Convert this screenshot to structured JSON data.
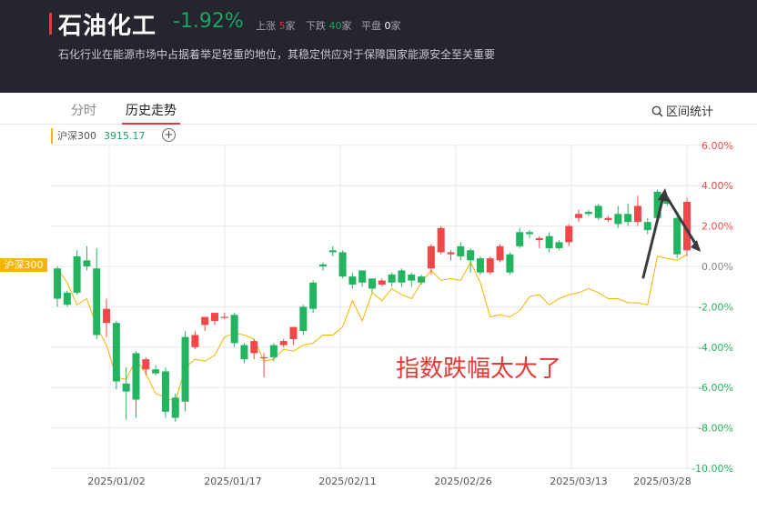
{
  "header": {
    "title": "石油化工",
    "change_pct": "-1.92%",
    "up_label": "上涨",
    "up_count": "5",
    "up_unit": "家",
    "down_label": "下跌",
    "down_count": "40",
    "down_unit": "家",
    "flat_label": "平盘",
    "flat_count": "0",
    "flat_unit": "家",
    "description": "石化行业在能源市场中占据着举足轻重的地位，其稳定供应对于保障国家能源安全至关重要"
  },
  "tabs": [
    {
      "label": "分时",
      "active": false
    },
    {
      "label": "历史走势",
      "active": true
    }
  ],
  "range_button": {
    "label": "区间统计",
    "icon": "search-icon"
  },
  "legend": {
    "name": "沪深300",
    "value": "3915.17",
    "add_icon": "plus-circle-icon"
  },
  "colors": {
    "up": "#f04848",
    "down": "#22b45f",
    "benchmark": "#f5b400",
    "accent": "#e03b3b"
  },
  "chart_data": {
    "type": "candlestick",
    "y_ticks": [
      "6.00%",
      "4.00%",
      "2.00%",
      "0.00%",
      "-2.00%",
      "-4.00%",
      "-6.00%",
      "-8.00%",
      "-10.00%"
    ],
    "y_tick_values": [
      6,
      4,
      2,
      0,
      -2,
      -4,
      -6,
      -8,
      -10
    ],
    "ylim": [
      -10,
      6
    ],
    "x_tick_labels": [
      "2025/01/02",
      "2025/01/17",
      "2025/02/11",
      "2025/02/26",
      "2025/03/13",
      "2025/03/28"
    ],
    "benchmark_tag": "沪深300",
    "annotation": "指数跌幅太大了",
    "candles": [
      [
        -0.1,
        -1.6,
        0.0,
        -2.0
      ],
      [
        -1.3,
        -1.9,
        -1.2,
        -2.0
      ],
      [
        0.5,
        -1.3,
        0.8,
        -1.4
      ],
      [
        0.3,
        0.0,
        1.0,
        -0.2
      ],
      [
        -0.1,
        -3.4,
        0.9,
        -3.6
      ],
      [
        -2.8,
        -2.1,
        -1.6,
        -3.5
      ],
      [
        -2.8,
        -5.7,
        -2.7,
        -6.1
      ],
      [
        -5.8,
        -6.2,
        -5.0,
        -7.6
      ],
      [
        -4.3,
        -6.6,
        -4.2,
        -7.5
      ],
      [
        -5.1,
        -4.6,
        -4.5,
        -5.4
      ],
      [
        -5.1,
        -5.3,
        -4.9,
        -5.4
      ],
      [
        -5.2,
        -7.2,
        -5.0,
        -7.5
      ],
      [
        -6.5,
        -7.5,
        -6.3,
        -7.7
      ],
      [
        -3.5,
        -6.7,
        -3.2,
        -7.2
      ],
      [
        -4.0,
        -3.4,
        -3.2,
        -4.1
      ],
      [
        -2.9,
        -2.5,
        -2.6,
        -3.2
      ],
      [
        -2.7,
        -2.3,
        -2.3,
        -2.9
      ],
      [
        -2.5,
        -2.5,
        -2.3,
        -2.6
      ],
      [
        -2.4,
        -3.8,
        -2.3,
        -4.0
      ],
      [
        -3.9,
        -4.6,
        -3.8,
        -4.8
      ],
      [
        -4.3,
        -3.7,
        -3.6,
        -4.6
      ],
      [
        -4.5,
        -4.5,
        -4.3,
        -5.5
      ],
      [
        -3.9,
        -4.5,
        -3.8,
        -4.7
      ],
      [
        -3.9,
        -3.7,
        -3.6,
        -4.0
      ],
      [
        -3.6,
        -3.0,
        -3.2,
        -3.9
      ],
      [
        -2.0,
        -3.2,
        -1.9,
        -3.4
      ],
      [
        -0.8,
        -2.1,
        -0.7,
        -2.3
      ],
      [
        0.1,
        0.0,
        0.2,
        -0.2
      ],
      [
        0.8,
        0.7,
        1.0,
        0.5
      ],
      [
        0.7,
        -0.5,
        0.8,
        -0.6
      ],
      [
        -0.5,
        -0.9,
        -0.3,
        -1.1
      ],
      [
        -0.2,
        -0.8,
        -0.2,
        -1.0
      ],
      [
        -0.6,
        -1.1,
        -0.6,
        -1.3
      ],
      [
        -0.9,
        -0.7,
        -0.6,
        -1.0
      ],
      [
        -0.4,
        -0.8,
        -0.3,
        -1.0
      ],
      [
        -0.2,
        -0.8,
        -0.1,
        -1.0
      ],
      [
        -0.4,
        -0.7,
        -0.3,
        -1.0
      ],
      [
        -0.5,
        -0.8,
        -0.4,
        -0.9
      ],
      [
        -0.1,
        1.0,
        1.1,
        -0.4
      ],
      [
        0.7,
        1.9,
        2.0,
        0.6
      ],
      [
        0.6,
        0.7,
        0.8,
        0.3
      ],
      [
        1.0,
        0.5,
        1.2,
        0.3
      ],
      [
        0.8,
        0.3,
        0.9,
        -0.3
      ],
      [
        0.4,
        -0.3,
        0.5,
        -0.4
      ],
      [
        -0.3,
        0.4,
        0.5,
        -0.4
      ],
      [
        0.3,
        1.0,
        1.1,
        0.2
      ],
      [
        0.6,
        -0.3,
        0.7,
        -0.4
      ],
      [
        1.7,
        1.0,
        1.9,
        0.9
      ],
      [
        1.7,
        1.6,
        1.8,
        1.4
      ],
      [
        1.3,
        1.4,
        1.5,
        0.9
      ],
      [
        1.5,
        0.9,
        1.7,
        0.7
      ],
      [
        1.2,
        0.9,
        1.3,
        0.8
      ],
      [
        1.2,
        2.0,
        2.1,
        1.0
      ],
      [
        2.4,
        2.6,
        2.8,
        2.2
      ],
      [
        2.7,
        2.6,
        2.8,
        2.5
      ],
      [
        3.0,
        2.4,
        3.1,
        2.3
      ],
      [
        2.3,
        2.4,
        2.5,
        2.2
      ],
      [
        2.6,
        2.1,
        3.0,
        1.9
      ],
      [
        2.6,
        2.2,
        3.1,
        2.0
      ],
      [
        2.2,
        3.0,
        3.5,
        2.0
      ],
      [
        2.2,
        1.8,
        2.4,
        1.6
      ],
      [
        3.7,
        2.4,
        3.8,
        2.3
      ],
      [
        3.3,
        3.1,
        3.4,
        3.0
      ],
      [
        2.4,
        0.6,
        2.5,
        0.4
      ],
      [
        0.8,
        3.2,
        3.4,
        0.5
      ]
    ],
    "benchmark": [
      -0.1,
      -0.8,
      -1.9,
      -1.6,
      -3.0,
      -3.9,
      -5.5,
      -5.6,
      -4.6,
      -5.3,
      -6.3,
      -6.5,
      -6.7,
      -5.0,
      -4.6,
      -4.7,
      -4.4,
      -3.5,
      -3.3,
      -3.4,
      -3.6,
      -4.7,
      -4.6,
      -4.1,
      -4.2,
      -3.9,
      -3.8,
      -3.4,
      -3.4,
      -3.0,
      -1.7,
      -2.7,
      -1.3,
      -1.7,
      -1.1,
      -1.4,
      -1.6,
      -0.8,
      -0.2,
      -0.7,
      -0.6,
      -0.7,
      0.2,
      -0.8,
      -2.5,
      -2.4,
      -2.5,
      -2.2,
      -1.5,
      -1.4,
      -1.9,
      -1.6,
      -1.4,
      -1.3,
      -1.1,
      -1.3,
      -1.6,
      -1.6,
      -1.8,
      -1.8,
      -1.9,
      0.5,
      0.4,
      0.3,
      0.6
    ]
  }
}
